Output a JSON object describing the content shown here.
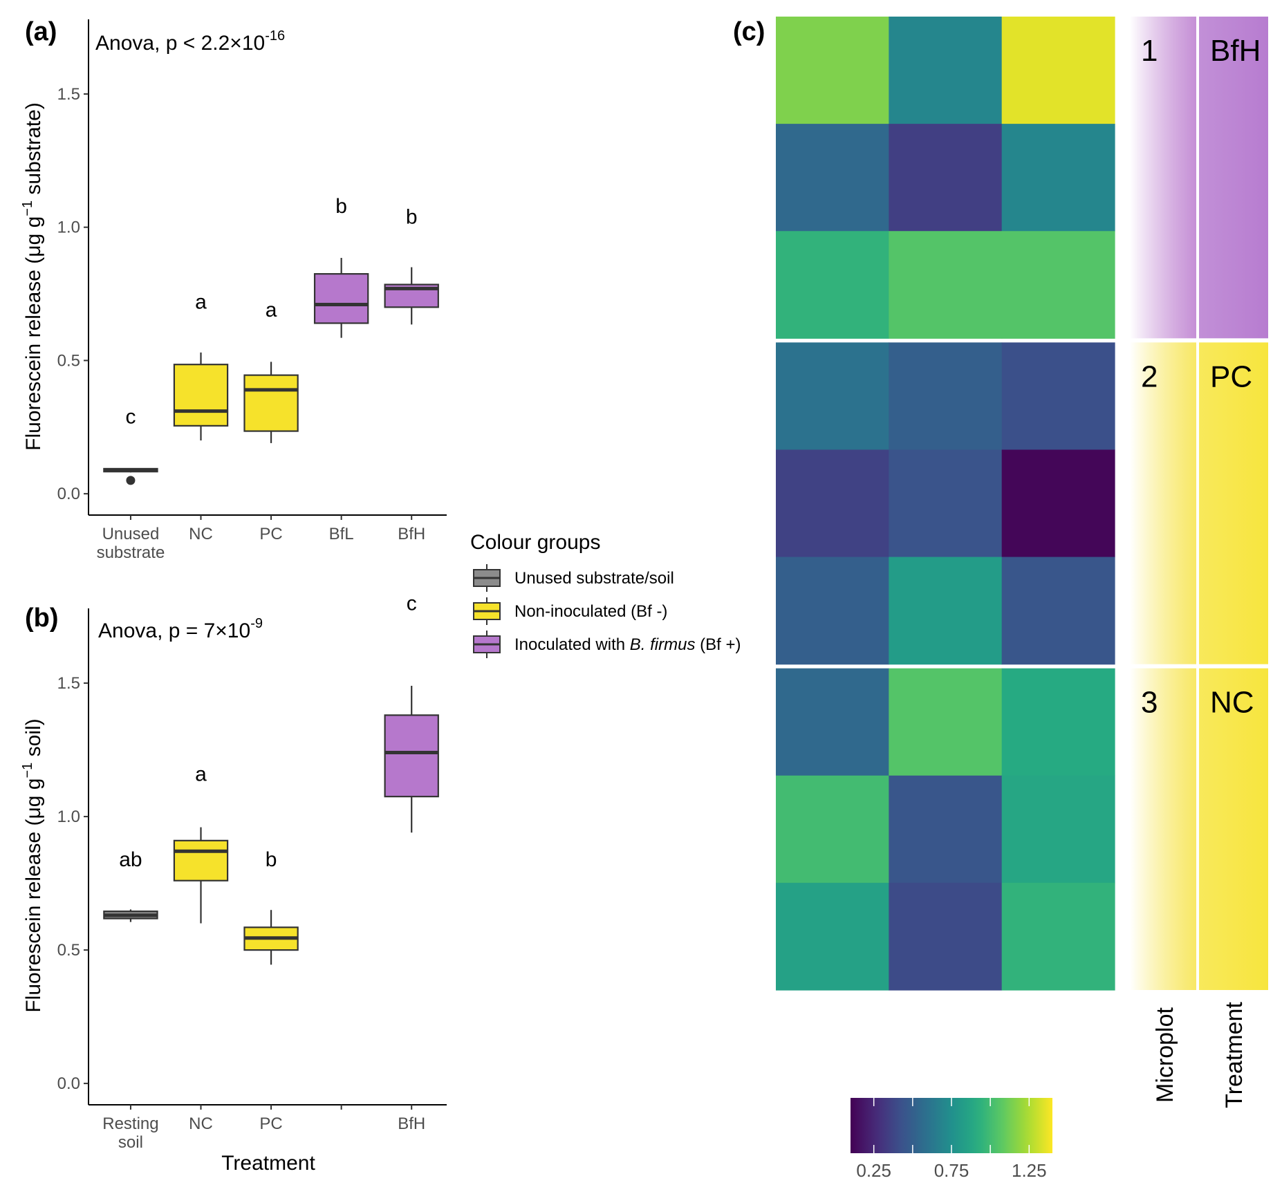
{
  "chart_data": [
    {
      "id": "a",
      "type": "boxplot",
      "panel_label": "(a)",
      "annotation": "Anova, p < 2.2×10",
      "annotation_sup": "-16",
      "ylabel": "Fluorescein release (μg g",
      "ylabel_sup": "−1",
      "ylabel_end": " substrate)",
      "ylim": [
        -0.08,
        1.78
      ],
      "yticks": [
        0.0,
        0.5,
        1.0,
        1.5
      ],
      "ytick_labels": [
        "0.0",
        "0.5",
        "1.0",
        "1.5"
      ],
      "categories": [
        [
          "Unused",
          "substrate"
        ],
        [
          "NC"
        ],
        [
          "PC"
        ],
        [
          "BfL"
        ],
        [
          "BfH"
        ]
      ],
      "boxes": [
        {
          "group": "grey",
          "min": 0.08,
          "q1": 0.083,
          "median": 0.089,
          "q3": 0.094,
          "max": 0.096,
          "outliers": [
            0.05
          ],
          "letter": "c",
          "letter_y": 0.29
        },
        {
          "group": "yellow",
          "min": 0.2,
          "q1": 0.255,
          "median": 0.31,
          "q3": 0.485,
          "max": 0.53,
          "outliers": [],
          "letter": "a",
          "letter_y": 0.72
        },
        {
          "group": "yellow",
          "min": 0.19,
          "q1": 0.235,
          "median": 0.39,
          "q3": 0.445,
          "max": 0.495,
          "outliers": [],
          "letter": "a",
          "letter_y": 0.69
        },
        {
          "group": "purple",
          "min": 0.585,
          "q1": 0.64,
          "median": 0.71,
          "q3": 0.825,
          "max": 0.885,
          "outliers": [],
          "letter": "b",
          "letter_y": 1.08
        },
        {
          "group": "purple",
          "min": 0.635,
          "q1": 0.7,
          "median": 0.77,
          "q3": 0.785,
          "max": 0.85,
          "outliers": [],
          "letter": "b",
          "letter_y": 1.04
        }
      ]
    },
    {
      "id": "b",
      "type": "boxplot",
      "panel_label": "(b)",
      "annotation": "Anova, p = 7×10",
      "annotation_sup": "-9",
      "ylabel": "Fluorescein release (μg g",
      "ylabel_sup": "−1",
      "ylabel_end": " soil)",
      "xlabel": "Treatment",
      "ylim": [
        -0.08,
        1.78
      ],
      "yticks": [
        0.0,
        0.5,
        1.0,
        1.5
      ],
      "ytick_labels": [
        "0.0",
        "0.5",
        "1.0",
        "1.5"
      ],
      "categories": [
        [
          "Resting",
          "soil"
        ],
        [
          "NC"
        ],
        [
          "PC"
        ],
        [
          ""
        ],
        [
          "BfH"
        ]
      ],
      "boxes": [
        {
          "group": "grey",
          "min": 0.605,
          "q1": 0.618,
          "median": 0.63,
          "q3": 0.645,
          "max": 0.652,
          "outliers": [],
          "letter": "ab",
          "letter_y": 0.84
        },
        {
          "group": "yellow",
          "min": 0.6,
          "q1": 0.76,
          "median": 0.87,
          "q3": 0.91,
          "max": 0.96,
          "outliers": [],
          "letter": "a",
          "letter_y": 1.16
        },
        {
          "group": "yellow",
          "min": 0.445,
          "q1": 0.5,
          "median": 0.545,
          "q3": 0.585,
          "max": 0.65,
          "outliers": [],
          "letter": "b",
          "letter_y": 0.84
        },
        null,
        {
          "group": "purple",
          "min": 0.94,
          "q1": 1.075,
          "median": 1.24,
          "q3": 1.38,
          "max": 1.49,
          "outliers": [],
          "letter": "c",
          "letter_y": 1.8
        }
      ]
    },
    {
      "id": "c",
      "type": "heatmap",
      "panel_label": "(c)",
      "rows": 9,
      "cols": 3,
      "values": [
        [
          1.15,
          0.7,
          1.35
        ],
        [
          0.55,
          0.35,
          0.7
        ],
        [
          0.95,
          1.05,
          1.05
        ],
        [
          0.6,
          0.5,
          0.42
        ],
        [
          0.36,
          0.44,
          0.12
        ],
        [
          0.5,
          0.82,
          0.45
        ],
        [
          0.55,
          1.05,
          0.9
        ],
        [
          1.0,
          0.45,
          0.88
        ],
        [
          0.85,
          0.4,
          0.95
        ]
      ],
      "color_range": [
        0.1,
        1.4
      ],
      "colorbar_ticks": [
        0.25,
        0.75,
        1.25
      ],
      "colorbar_tick_labels": [
        "0.25",
        "0.75",
        "1.25"
      ],
      "microplot_labels": [
        "1",
        "2",
        "3"
      ],
      "treatment_labels": [
        "BfH",
        "PC",
        "NC"
      ],
      "microplot_colors": [
        "#b26bc8",
        "#f5e033",
        "#f5e033"
      ],
      "treatment_colors": [
        "#b77cd0",
        "#f7e53e",
        "#f7e53e"
      ],
      "side_titles": [
        "Microplot",
        "Treatment"
      ]
    }
  ],
  "legend": {
    "title": "Colour groups",
    "items": [
      {
        "group": "grey",
        "label": "Unused substrate/soil"
      },
      {
        "group": "yellow",
        "label": "Non-inoculated (Bf -)"
      },
      {
        "group": "purple",
        "label_pre": "Inoculated with ",
        "label_italic": "B. firmus",
        "label_post": " (Bf +)"
      }
    ]
  },
  "colors": {
    "grey": "#8c8c8c",
    "yellow": "#f6e22b",
    "purple": "#b678cc",
    "line": "#333333"
  }
}
